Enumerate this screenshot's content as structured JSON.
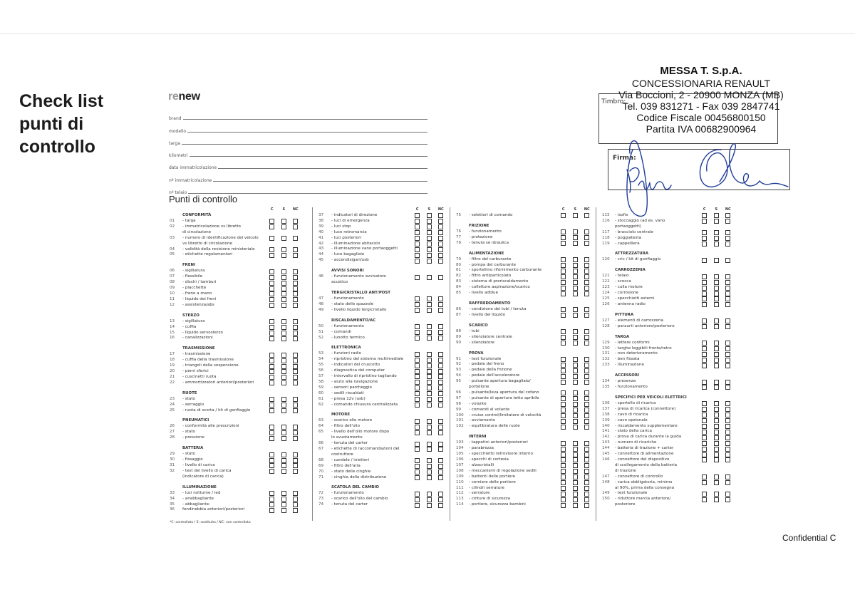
{
  "title": "Check list\npunti di\ncontrollo",
  "logo": {
    "prefix": "re",
    "rest": "new"
  },
  "form_fields": [
    {
      "label": "brand",
      "value": ""
    },
    {
      "label": "modello",
      "value": ""
    },
    {
      "label": "targa",
      "value": ""
    },
    {
      "label": "kilometri",
      "value": ""
    },
    {
      "label": "data immatricolazione",
      "value": ""
    },
    {
      "label": "nº immatricolazione",
      "value": ""
    },
    {
      "label": "nº telaio",
      "value": ""
    }
  ],
  "subtitle": "Punti di controllo",
  "check_headers": [
    "C",
    "S",
    "NC"
  ],
  "columns": [
    {
      "sections": [
        {
          "title": "CONFORMITÀ",
          "items": [
            {
              "n": "01",
              "label": "- targa"
            },
            {
              "n": "02",
              "label": "- immatricolazione vs libretto\ndi circolazione"
            },
            {
              "n": "03",
              "label": "- numero di identificazione del veicolo\nvs libretto di circolazione"
            },
            {
              "n": "04",
              "label": "- validità della revisione ministeriale"
            },
            {
              "n": "05",
              "label": "- etichette regolamentari"
            }
          ]
        },
        {
          "title": "FRENI",
          "items": [
            {
              "n": "06",
              "label": "- sigillatura"
            },
            {
              "n": "07",
              "label": "- flessibile"
            },
            {
              "n": "08",
              "label": "- dischi / tamburi"
            },
            {
              "n": "09",
              "label": "- placchette"
            },
            {
              "n": "10",
              "label": "- freno a mano"
            },
            {
              "n": "11",
              "label": "- liquido dei freni"
            },
            {
              "n": "12",
              "label": "- assistenza/abs"
            }
          ]
        },
        {
          "title": "STERZO",
          "items": [
            {
              "n": "13",
              "label": "- sigillatura"
            },
            {
              "n": "14",
              "label": "- cuffia"
            },
            {
              "n": "15",
              "label": "- liquido servosterzo"
            },
            {
              "n": "16",
              "label": "- canalizzazioni"
            }
          ]
        },
        {
          "title": "TRASMISSIONE",
          "items": [
            {
              "n": "17",
              "label": "- trasmissione"
            },
            {
              "n": "18",
              "label": "- cuffia della trasmissione"
            },
            {
              "n": "19",
              "label": "- triangoli della sospensione"
            },
            {
              "n": "20",
              "label": "- perni sferici"
            },
            {
              "n": "21",
              "label": "- cuscinetti ruota"
            },
            {
              "n": "22",
              "label": "- ammortizzatori anteriori/posteriori"
            }
          ]
        },
        {
          "title": "RUOTE",
          "items": [
            {
              "n": "23",
              "label": "- stato"
            },
            {
              "n": "24",
              "label": "- serraggio"
            },
            {
              "n": "25",
              "label": "- ruota di scorta / kit di gonfiaggio"
            }
          ]
        },
        {
          "title": "PNEUMATICI",
          "items": [
            {
              "n": "26",
              "label": "- conformità alle prescrizioni"
            },
            {
              "n": "27",
              "label": "- stato"
            },
            {
              "n": "28",
              "label": "- pressione"
            }
          ]
        },
        {
          "title": "BATTERIA",
          "items": [
            {
              "n": "29",
              "label": "- stato"
            },
            {
              "n": "30",
              "label": "- fissaggio"
            },
            {
              "n": "31",
              "label": "- livello di carica"
            },
            {
              "n": "32",
              "label": "- test del livello di carica\n(indicatore di carica)"
            }
          ]
        },
        {
          "title": "ILLUMINAZIONE",
          "items": [
            {
              "n": "33",
              "label": "- luci notturne / led"
            },
            {
              "n": "34",
              "label": "- anabbagliante"
            },
            {
              "n": "35",
              "label": "- abbagliante-"
            },
            {
              "n": "36",
              "label": "fendinebbia anteriori/posteriori"
            }
          ]
        }
      ]
    },
    {
      "sections": [
        {
          "title": "",
          "items": [
            {
              "n": "37",
              "label": "- indicatori di direzione"
            },
            {
              "n": "38",
              "label": "- luci di emergenza"
            },
            {
              "n": "39",
              "label": "- luci stop"
            },
            {
              "n": "40",
              "label": "- luce retromarcia"
            },
            {
              "n": "41",
              "label": "- luci posteriori"
            },
            {
              "n": "42",
              "label": "- illuminazione abitacolo"
            },
            {
              "n": "43",
              "label": "- illuminazione vano portaoggetti"
            },
            {
              "n": "44",
              "label": "- luce bagagliaio"
            },
            {
              "n": "45",
              "label": "- accendisigari/usb"
            }
          ]
        },
        {
          "title": "AVVISI SONORI",
          "items": [
            {
              "n": "46",
              "label": "- funzionamento avvisatore\nacustico"
            }
          ]
        },
        {
          "title": "TERGICRISTALLO ANT/POST",
          "items": [
            {
              "n": "47",
              "label": "- funzionamento"
            },
            {
              "n": "48",
              "label": "- stato delle spazzole"
            },
            {
              "n": "49",
              "label": "- livello liquido tergicristallo"
            }
          ]
        },
        {
          "title": "RISCALDAMENTO/AC",
          "items": [
            {
              "n": "50",
              "label": "- funzionamento"
            },
            {
              "n": "51",
              "label": "- comandi"
            },
            {
              "n": "52",
              "label": "- lunotto termico"
            }
          ]
        },
        {
          "title": "ELETTRONICA",
          "items": [
            {
              "n": "53",
              "label": "- funzioni radio"
            },
            {
              "n": "54",
              "label": "- ripristino del sistema multimediale"
            },
            {
              "n": "55",
              "label": "- indicatori del cruscotto"
            },
            {
              "n": "56",
              "label": "- diagnostica del computer"
            },
            {
              "n": "57",
              "label": "- intervallo di ripristino tagliando"
            },
            {
              "n": "58",
              "label": "- aiuto alla navigazione"
            },
            {
              "n": "59",
              "label": "- sensori parcheggio"
            },
            {
              "n": "60",
              "label": "- sedili riscaldati"
            },
            {
              "n": "61",
              "label": "- presa 12v (usb)"
            },
            {
              "n": "62",
              "label": "- comando chiusura centralizzata"
            }
          ]
        },
        {
          "title": "MOTORE",
          "items": [
            {
              "n": "63",
              "label": "- scarico olio motore"
            },
            {
              "n": "64",
              "label": "- filtro dell'olio"
            },
            {
              "n": "65",
              "label": "- livello dell'olio motore dopo\nlo svuotamento"
            },
            {
              "n": "66",
              "label": "- tenuta del carter"
            },
            {
              "n": "67",
              "label": "- etichette di raccomandazioni del\ncostruttore"
            },
            {
              "n": "68",
              "label": "- candele / iniettori"
            },
            {
              "n": "69",
              "label": "- filtro dell'aria"
            },
            {
              "n": "70",
              "label": "- stato delle cinghie"
            },
            {
              "n": "71",
              "label": "- cinghia della distribuzione"
            }
          ]
        },
        {
          "title": "SCATOLA DEL CAMBIO",
          "items": [
            {
              "n": "72",
              "label": "- funzionamento"
            },
            {
              "n": "73",
              "label": "- scarico dell'olio del cambio"
            },
            {
              "n": "74",
              "label": "- tenuta del carter"
            }
          ]
        }
      ]
    },
    {
      "sections": [
        {
          "title": "",
          "items": [
            {
              "n": "75",
              "label": "- selettori di comando"
            }
          ]
        },
        {
          "title": "FRIZIONE",
          "items": [
            {
              "n": "76",
              "label": "- funzionamento"
            },
            {
              "n": "77",
              "label": "- protezione"
            },
            {
              "n": "78",
              "label": "- tenuta se idraulica"
            }
          ]
        },
        {
          "title": "ALIMENTAZIONE",
          "items": [
            {
              "n": "79",
              "label": "- filtro del carburante"
            },
            {
              "n": "80",
              "label": "- pompa del carburante"
            },
            {
              "n": "81",
              "label": "- sportellino rifornimento carburante"
            },
            {
              "n": "82",
              "label": "- filtro antiparticolato"
            },
            {
              "n": "83",
              "label": "- sistema di preriscaldamento"
            },
            {
              "n": "84",
              "label": "- collettore aspirazione/scarico"
            },
            {
              "n": "85",
              "label": "- livello adblue"
            }
          ]
        },
        {
          "title": "RAFFREDDAMENTO",
          "items": [
            {
              "n": "86",
              "label": "- condizione dei tubi / tenuta"
            },
            {
              "n": "87",
              "label": "- livello del liquido"
            }
          ]
        },
        {
          "title": "SCARICO",
          "items": [
            {
              "n": "88",
              "label": "- tubi"
            },
            {
              "n": "89",
              "label": "- silenziatore centrale"
            },
            {
              "n": "90",
              "label": "- silenziatore"
            }
          ]
        },
        {
          "title": "PROVA",
          "items": [
            {
              "n": "91",
              "label": "- test funzionale"
            },
            {
              "n": "92",
              "label": "- pedale del freno"
            },
            {
              "n": "93",
              "label": "- pedale della frizione"
            },
            {
              "n": "94",
              "label": "- pedale dell'acceleratore"
            },
            {
              "n": "95",
              "label": "- pulsante apertura bagagliaio/\nportellone"
            },
            {
              "n": "96",
              "label": "- pulsante/leva apertura del cofano"
            },
            {
              "n": "97",
              "label": "- pulsante di apertura tetto apribile"
            },
            {
              "n": "98",
              "label": "- volante"
            },
            {
              "n": "99",
              "label": "- comandi al volante"
            },
            {
              "n": "100",
              "label": "- cruise control/limitatore di velocità"
            },
            {
              "n": "101",
              "label": "- avviamento"
            },
            {
              "n": "102",
              "label": "- equilibratura delle ruote"
            }
          ]
        },
        {
          "title": "INTERNI",
          "items": [
            {
              "n": "103",
              "label": "- tappetini anteriori/posteriori"
            },
            {
              "n": "104",
              "label": "- parabrezza"
            },
            {
              "n": "105",
              "label": "- specchietto retrovisore interno"
            },
            {
              "n": "106",
              "label": "- specchi di cortesia"
            },
            {
              "n": "107",
              "label": "- alzacristalli"
            },
            {
              "n": "108",
              "label": "- meccanismi di regolazione sedili"
            },
            {
              "n": "109",
              "label": "- battenti delle portiere"
            },
            {
              "n": "110",
              "label": "- cerniere delle portiere"
            },
            {
              "n": "111",
              "label": "- cilindri serrature"
            },
            {
              "n": "112",
              "label": "- serrature"
            },
            {
              "n": "113",
              "label": "- cinture di sicurezza"
            },
            {
              "n": "114",
              "label": "- portiere, sicurezza bambini"
            }
          ]
        }
      ]
    },
    {
      "sections": [
        {
          "title": "",
          "items": [
            {
              "n": "115",
              "label": "- isofix"
            },
            {
              "n": "116",
              "label": "- stoccaggio (ad es. vano\nportaoggetti)"
            },
            {
              "n": "117",
              "label": "- bracciolo centrale"
            },
            {
              "n": "118",
              "label": "- poggiatesta"
            },
            {
              "n": "119",
              "label": "- cappelliera"
            }
          ]
        },
        {
          "title": "ATTREZZATURA",
          "items": [
            {
              "n": "120",
              "label": "- cric / kit di gonfiaggio"
            }
          ]
        },
        {
          "title": "CARROZZERIA",
          "items": [
            {
              "n": "121",
              "label": "- telaio"
            },
            {
              "n": "122",
              "label": "- scocca"
            },
            {
              "n": "123",
              "label": "- culla motore"
            },
            {
              "n": "124",
              "label": "- corrosione"
            },
            {
              "n": "125",
              "label": "- specchietti esterni"
            },
            {
              "n": "126",
              "label": "- antenna radio"
            }
          ]
        },
        {
          "title": "PITTURA",
          "items": [
            {
              "n": "127",
              "label": "- elementi di carrozzeria"
            },
            {
              "n": "128",
              "label": "- paraurti anteriore/posteriore"
            }
          ]
        },
        {
          "title": "TARGA",
          "items": [
            {
              "n": "129",
              "label": "- lettere conformi"
            },
            {
              "n": "130",
              "label": "- targhe leggibili fronte/retro"
            },
            {
              "n": "131",
              "label": "- non deterioramento"
            },
            {
              "n": "132",
              "label": "- ben fissata"
            },
            {
              "n": "133",
              "label": "- illuminazione"
            }
          ]
        },
        {
          "title": "ACCESSORI",
          "items": [
            {
              "n": "134",
              "label": "- presenza"
            },
            {
              "n": "135",
              "label": "- funzionamento"
            }
          ]
        },
        {
          "title": "SPECIFICI PER VEICOLI ELETTRICI",
          "items": [
            {
              "n": "136",
              "label": "- sportello di ricarica"
            },
            {
              "n": "137",
              "label": "- presa di ricarica (connettore)"
            },
            {
              "n": "138",
              "label": "- cavo di ricarica"
            },
            {
              "n": "139",
              "label": "- cavo opzionale"
            },
            {
              "n": "140",
              "label": "- riscaldamento supplementare"
            },
            {
              "n": "141",
              "label": "- stato della carica"
            },
            {
              "n": "142",
              "label": "- prova di carica durante la guida"
            },
            {
              "n": "143",
              "label": "- numero di ricariche"
            },
            {
              "n": "144",
              "label": "- batteria di trazione + carter"
            },
            {
              "n": "145",
              "label": "- connettore di alimentazione"
            },
            {
              "n": "146",
              "label": "- connettore del dispositivo\ndi scollegamento della batteria\ndi trazione"
            },
            {
              "n": "147",
              "label": "- connettore di controllo"
            },
            {
              "n": "148",
              "label": "- carica obbligatoria, minimo\nal 90%, prima della consegna"
            },
            {
              "n": "149",
              "label": "- test funzionale"
            },
            {
              "n": "150",
              "label": "- riduttore marcia anteriore/\nposteriore"
            }
          ]
        }
      ]
    }
  ],
  "footnote": "*C: controllato / S: sostituito / NC: non controllato",
  "stamp": {
    "label": "Timbro:",
    "lines": [
      "MESSA T. S.p.A.",
      "CONCESSIONARIA RENAULT",
      "Via Boccioni, 2 - 20900 MONZA (MB)",
      "Tel. 039 831271 - Fax 039 2847741",
      "Codice Fiscale 00456800150",
      "Partita IVA 00682900964"
    ]
  },
  "signature": {
    "label": "Firma:",
    "ink_color": "#1f3c9a"
  },
  "confidential": "Confidential C"
}
